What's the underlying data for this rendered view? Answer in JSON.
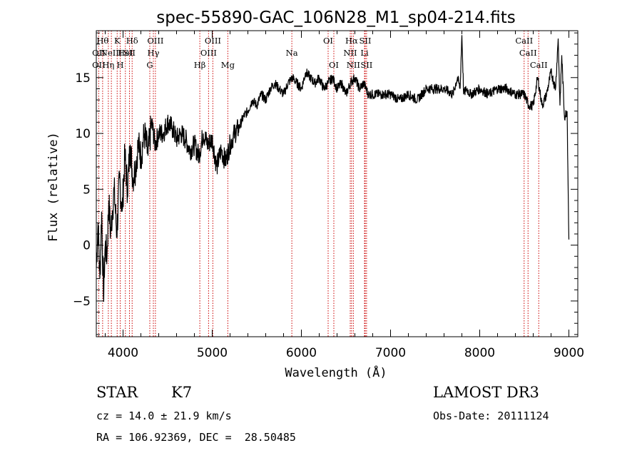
{
  "chart_data": {
    "type": "line",
    "title": "spec-55890-GAC_106N28_M1_sp04-214.fits",
    "xlabel": "Wavelength (Å)",
    "ylabel": "Flux (relative)",
    "xlim": [
      3700,
      9100
    ],
    "ylim": [
      -8.2,
      19.2
    ],
    "x_ticks": [
      4000,
      5000,
      6000,
      7000,
      8000,
      9000
    ],
    "x_tick_labels": [
      "4000",
      "5000",
      "6000",
      "7000",
      "8000",
      "9000"
    ],
    "y_ticks": [
      -5,
      0,
      5,
      10,
      15
    ],
    "y_tick_labels": [
      "−5",
      "0",
      "5",
      "10",
      "15"
    ],
    "grid": false,
    "line_color": "#000000",
    "marker_line_color": "#cc0000",
    "series": [
      {
        "x": [
          3700,
          3720,
          3740,
          3760,
          3780,
          3800,
          3820,
          3840,
          3860,
          3880,
          3900,
          3930,
          3960,
          3990,
          4020,
          4050,
          4080,
          4110,
          4140,
          4170,
          4200,
          4240,
          4280,
          4320,
          4360,
          4400,
          4450,
          4500,
          4550,
          4600,
          4650,
          4700,
          4750,
          4800,
          4850,
          4900,
          4950,
          5000,
          5050,
          5100,
          5150,
          5200,
          5250,
          5300,
          5350,
          5400,
          5450,
          5500,
          5550,
          5600,
          5650,
          5700,
          5750,
          5800,
          5850,
          5900,
          5950,
          6000,
          6050,
          6100,
          6150,
          6200,
          6250,
          6300,
          6350,
          6400,
          6450,
          6500,
          6550,
          6600,
          6650,
          6700,
          6750,
          6800,
          6900,
          7000,
          7100,
          7200,
          7300,
          7400,
          7500,
          7600,
          7700,
          7750,
          7780,
          7800,
          7820,
          7850,
          7900,
          8000,
          8100,
          8200,
          8300,
          8400,
          8500,
          8550,
          8600,
          8650,
          8700,
          8750,
          8800,
          8850,
          8880,
          8900,
          8920,
          8950,
          8980,
          9000
        ],
        "y": [
          -2,
          2,
          -3,
          3,
          -4.5,
          0,
          -1,
          4,
          1,
          3,
          5,
          1,
          6,
          3,
          8,
          5,
          9,
          6,
          7,
          9,
          8,
          10,
          8,
          11,
          9,
          10,
          10,
          11,
          10.5,
          9.5,
          10,
          9.5,
          8.5,
          9,
          8,
          10,
          9,
          9.5,
          7,
          8.5,
          7.5,
          9,
          10,
          10.5,
          11.5,
          12,
          13,
          12.5,
          13.5,
          13,
          14,
          14.5,
          14,
          13.5,
          14.5,
          15,
          14.5,
          14,
          15.5,
          15,
          14.5,
          15,
          14,
          14.5,
          15,
          14,
          14.5,
          13.5,
          14.5,
          15,
          14,
          14.5,
          13.5,
          13.5,
          13.5,
          13.5,
          13,
          13.5,
          13,
          14,
          14,
          14,
          13.5,
          15,
          14,
          18.8,
          13.5,
          14,
          13.5,
          14,
          13.5,
          14,
          14,
          13.5,
          13.5,
          12.5,
          12.5,
          15,
          12.5,
          13.5,
          15.5,
          14,
          18.5,
          12.5,
          17,
          11.5,
          12,
          0.5
        ]
      }
    ],
    "lines": [
      {
        "lambda": 3771,
        "label": "Hθ",
        "row": 1
      },
      {
        "lambda": 3727,
        "label": "OII",
        "row": 2
      },
      {
        "lambda": 3727,
        "label": "OII",
        "row": 3
      },
      {
        "lambda": 3835,
        "label": "Hη",
        "row": 3
      },
      {
        "lambda": 3869,
        "label": "NeIII",
        "row": 2
      },
      {
        "lambda": 3934,
        "label": "K",
        "row": 1
      },
      {
        "lambda": 3968,
        "label": "H",
        "row": 3
      },
      {
        "lambda": 4026,
        "label": "HeI",
        "row": 2
      },
      {
        "lambda": 4072,
        "label": "SII",
        "row": 2
      },
      {
        "lambda": 4102,
        "label": "Hδ",
        "row": 1
      },
      {
        "lambda": 4300,
        "label": "G",
        "row": 3
      },
      {
        "lambda": 4340,
        "label": "Hγ",
        "row": 2
      },
      {
        "lambda": 4363,
        "label": "OIII",
        "row": 1
      },
      {
        "lambda": 4861,
        "label": "Hβ",
        "row": 3
      },
      {
        "lambda": 4959,
        "label": "OIII",
        "row": 2
      },
      {
        "lambda": 5007,
        "label": "OIII",
        "row": 1
      },
      {
        "lambda": 5175,
        "label": "Mg",
        "row": 3
      },
      {
        "lambda": 5893,
        "label": "Na",
        "row": 2
      },
      {
        "lambda": 6300,
        "label": "OI",
        "row": 1
      },
      {
        "lambda": 6364,
        "label": "OI",
        "row": 3
      },
      {
        "lambda": 6548,
        "label": "NII",
        "row": 2
      },
      {
        "lambda": 6563,
        "label": "Hα",
        "row": 1
      },
      {
        "lambda": 6583,
        "label": "NII",
        "row": 3
      },
      {
        "lambda": 6708,
        "label": "Li",
        "row": 2
      },
      {
        "lambda": 6716,
        "label": "SII",
        "row": 1
      },
      {
        "lambda": 6731,
        "label": "SII",
        "row": 3
      },
      {
        "lambda": 8498,
        "label": "CaII",
        "row": 1
      },
      {
        "lambda": 8542,
        "label": "CaII",
        "row": 2
      },
      {
        "lambda": 8662,
        "label": "CaII",
        "row": 3
      }
    ]
  },
  "info": {
    "object_class": "STAR",
    "subclass": "K7",
    "survey": "LAMOST DR3",
    "cz": "cz = 14.0 ± 21.9 km/s",
    "obs_date": "Obs-Date: 20111124",
    "coords": "RA = 106.92369, DEC =  28.50485"
  }
}
